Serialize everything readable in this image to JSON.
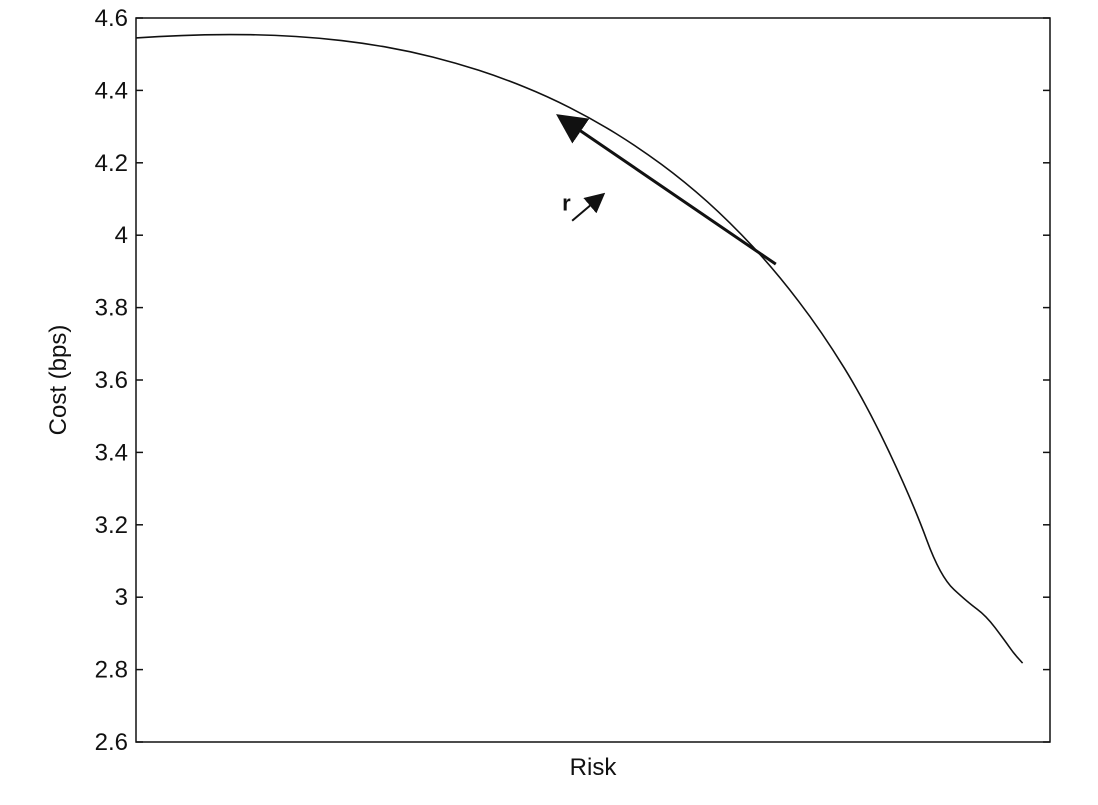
{
  "chart_data": {
    "type": "line",
    "title": "",
    "xlabel": "Risk",
    "ylabel": "Cost (bps)",
    "ylim": [
      2.6,
      4.6
    ],
    "yticks": [
      "2.6",
      "2.8",
      "3",
      "3.2",
      "3.4",
      "3.6",
      "3.8",
      "4",
      "4.2",
      "4.4",
      "4.6"
    ],
    "x_ticks_labeled": false,
    "grid": false,
    "legend": "none",
    "series": [
      {
        "x": [
          0.0,
          0.05,
          0.1,
          0.15,
          0.2,
          0.25,
          0.3,
          0.35,
          0.4,
          0.45,
          0.5,
          0.55,
          0.6,
          0.65,
          0.7,
          0.75,
          0.8,
          0.85,
          0.88,
          0.91,
          0.93,
          0.95,
          0.96,
          0.97
        ],
        "values": [
          4.545,
          4.552,
          4.555,
          4.553,
          4.545,
          4.53,
          4.508,
          4.476,
          4.435,
          4.384,
          4.32,
          4.242,
          4.149,
          4.036,
          3.9,
          3.735,
          3.53,
          3.262,
          3.056,
          2.986,
          2.949,
          2.882,
          2.846,
          2.818
        ],
        "color": "#111111"
      }
    ],
    "annotations": [
      {
        "text": "r",
        "x": 0.475,
        "y": 4.04,
        "arrow_to": [
          0.51,
          4.11
        ]
      },
      {
        "text": "",
        "arrow_from": [
          0.7,
          3.92
        ],
        "arrow_to": [
          0.465,
          4.325
        ]
      }
    ]
  }
}
